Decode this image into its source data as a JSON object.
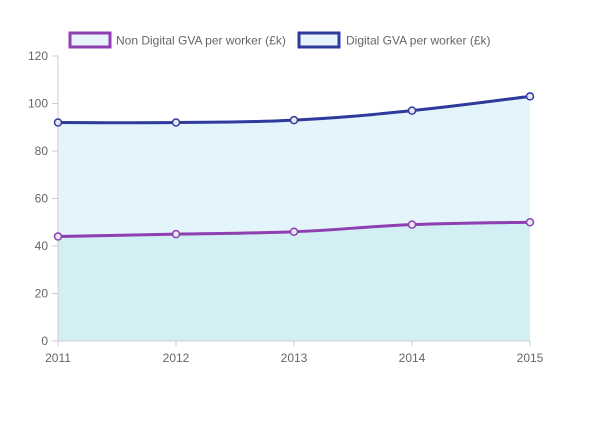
{
  "chart_data": {
    "type": "area",
    "x": [
      "2011",
      "2012",
      "2013",
      "2014",
      "2015"
    ],
    "series": [
      {
        "name": "Non Digital GVA per worker (£k)",
        "values": [
          44,
          45,
          46,
          49,
          50
        ],
        "line_color": "#8e3fb0",
        "fill_color": "#d2eff4"
      },
      {
        "name": "Digital GVA per worker (£k)",
        "values": [
          92,
          92,
          93,
          97,
          103
        ],
        "line_color": "#2e3a9c",
        "fill_color": "#e3f4fb"
      }
    ],
    "y_ticks": [
      0,
      20,
      40,
      60,
      80,
      100,
      120
    ],
    "ylim": [
      0,
      120
    ],
    "grid": false,
    "legend_position": "top",
    "legend_box_fill": "#e8f3fb",
    "axis_color": "#cccccc",
    "point_fill": "#e8e8f0"
  }
}
